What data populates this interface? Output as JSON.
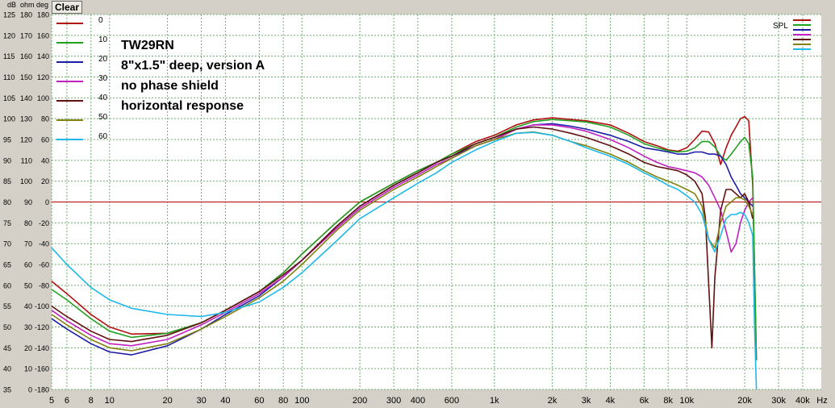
{
  "toolbar": {
    "clear_label": "Clear"
  },
  "axis_titles": {
    "db": "dB",
    "ohm": "ohm",
    "deg": "deg"
  },
  "colors": {
    "plot_bg": "#ffffff",
    "grid": "#6fae6f",
    "ref_line": "#b00000",
    "frame": "#d4d0c8"
  },
  "chart_data": {
    "type": "line",
    "title": "",
    "annotations": [
      "TW29RN",
      "8\"x1.5\" deep, version A",
      "no phase shield",
      "horizontal response"
    ],
    "x_scale": "log",
    "xlim": [
      5,
      50000
    ],
    "x_ticks": [
      {
        "v": 5,
        "l": "5"
      },
      {
        "v": 6,
        "l": "6"
      },
      {
        "v": 8,
        "l": "8"
      },
      {
        "v": 10,
        "l": "10"
      },
      {
        "v": 20,
        "l": "20"
      },
      {
        "v": 30,
        "l": "30"
      },
      {
        "v": 40,
        "l": "40"
      },
      {
        "v": 60,
        "l": "60"
      },
      {
        "v": 80,
        "l": "80"
      },
      {
        "v": 100,
        "l": "100"
      },
      {
        "v": 200,
        "l": "200"
      },
      {
        "v": 300,
        "l": "300"
      },
      {
        "v": 400,
        "l": "400"
      },
      {
        "v": 600,
        "l": "600"
      },
      {
        "v": 1000,
        "l": "1k"
      },
      {
        "v": 2000,
        "l": "2k"
      },
      {
        "v": 3000,
        "l": "3k"
      },
      {
        "v": 4000,
        "l": "4k"
      },
      {
        "v": 6000,
        "l": "6k"
      },
      {
        "v": 8000,
        "l": "8k"
      },
      {
        "v": 10000,
        "l": "10k"
      },
      {
        "v": 20000,
        "l": "20k"
      },
      {
        "v": 30000,
        "l": "30k"
      },
      {
        "v": 40000,
        "l": "40k"
      }
    ],
    "x_unit": "Hz",
    "ylim": [
      35,
      125
    ],
    "y_ticks": [
      {
        "db": "125",
        "ohm": "180",
        "deg": "180"
      },
      {
        "db": "120",
        "ohm": "170",
        "deg": "160"
      },
      {
        "db": "115",
        "ohm": "160",
        "deg": "140"
      },
      {
        "db": "110",
        "ohm": "150",
        "deg": "120"
      },
      {
        "db": "105",
        "ohm": "140",
        "deg": "100"
      },
      {
        "db": "100",
        "ohm": "130",
        "deg": "80"
      },
      {
        "db": "95",
        "ohm": "120",
        "deg": "60"
      },
      {
        "db": "90",
        "ohm": "110",
        "deg": "40"
      },
      {
        "db": "85",
        "ohm": "100",
        "deg": "20"
      },
      {
        "db": "80",
        "ohm": "90",
        "deg": "0"
      },
      {
        "db": "75",
        "ohm": "80",
        "deg": "-20"
      },
      {
        "db": "70",
        "ohm": "70",
        "deg": "-40"
      },
      {
        "db": "65",
        "ohm": "60",
        "deg": "-60"
      },
      {
        "db": "60",
        "ohm": "50",
        "deg": "-80"
      },
      {
        "db": "55",
        "ohm": "40",
        "deg": "-100"
      },
      {
        "db": "50",
        "ohm": "30",
        "deg": "-120"
      },
      {
        "db": "45",
        "ohm": "20",
        "deg": "-140"
      },
      {
        "db": "40",
        "ohm": "10",
        "deg": "-160"
      },
      {
        "db": "35",
        "ohm": "0",
        "deg": "-180"
      }
    ],
    "reference_line_db": 80,
    "grid": true,
    "legend_position": "top-left",
    "legend_right_label": "SPL",
    "series": [
      {
        "name": "0",
        "color": "#b01010",
        "x": [
          5,
          6,
          8,
          10,
          13,
          20,
          30,
          40,
          60,
          80,
          100,
          150,
          200,
          300,
          400,
          500,
          600,
          800,
          1000,
          1300,
          1600,
          2000,
          2500,
          3000,
          4000,
          5000,
          6000,
          7000,
          8000,
          9000,
          10000,
          11000,
          12000,
          13000,
          14000,
          15000,
          16000,
          17000,
          18000,
          19000,
          20000,
          21000,
          22000,
          23000
        ],
        "y": [
          61,
          58,
          53,
          50,
          48.3,
          48.5,
          51,
          54,
          58.5,
          63,
          67.5,
          75,
          80,
          84.5,
          87.5,
          89.5,
          91.5,
          94.5,
          96,
          98.5,
          99.7,
          100.2,
          99.8,
          99.5,
          98.5,
          96.5,
          94.5,
          93.5,
          92.5,
          92.2,
          93,
          95,
          97,
          96.8,
          94,
          89,
          93,
          96,
          98,
          100,
          100.5,
          99.5,
          84,
          42
        ]
      },
      {
        "name": "10",
        "color": "#22a022",
        "x": [
          5,
          6,
          8,
          10,
          13,
          20,
          30,
          40,
          60,
          80,
          100,
          150,
          200,
          300,
          400,
          500,
          600,
          800,
          1000,
          1300,
          1600,
          2000,
          2500,
          3000,
          4000,
          5000,
          6000,
          7000,
          8000,
          9000,
          10000,
          11000,
          12000,
          13000,
          14000,
          15000,
          16000,
          17000,
          18000,
          19000,
          20000,
          21000,
          22000,
          23000
        ],
        "y": [
          59,
          56.5,
          52,
          49,
          47.5,
          48.5,
          51,
          54,
          58.5,
          63,
          67.5,
          75,
          80,
          84.5,
          87.5,
          89.5,
          91.5,
          94,
          95.5,
          98,
          99.3,
          99.8,
          99.5,
          99.2,
          98,
          96,
          94,
          93,
          92.3,
          92,
          92.2,
          93,
          94.5,
          94.5,
          93.2,
          91,
          90,
          91.5,
          93,
          94.5,
          95.5,
          94,
          86,
          42
        ]
      },
      {
        "name": "20",
        "color": "#1c1ca8",
        "x": [
          5,
          6,
          8,
          10,
          13,
          20,
          30,
          40,
          60,
          80,
          100,
          150,
          200,
          300,
          400,
          500,
          600,
          800,
          1000,
          1300,
          1600,
          2000,
          2500,
          3000,
          4000,
          5000,
          6000,
          7000,
          8000,
          9000,
          10000,
          11000,
          12000,
          13000,
          14000,
          15000,
          16000,
          17000,
          18000,
          19000,
          20000,
          21000,
          22000
        ],
        "y": [
          52,
          49.5,
          46,
          44,
          43.3,
          45.5,
          49.5,
          53,
          57.5,
          62,
          66,
          74,
          79,
          84,
          87,
          89.5,
          91,
          93.5,
          95,
          97.5,
          98.5,
          98.8,
          98.2,
          97.5,
          96,
          94.5,
          93,
          92.5,
          92,
          91.5,
          91.5,
          92,
          92,
          91.5,
          91.5,
          91,
          89,
          86,
          84,
          82,
          81,
          80,
          79
        ]
      },
      {
        "name": "30",
        "color": "#c020c0",
        "x": [
          5,
          6,
          8,
          10,
          13,
          20,
          30,
          40,
          60,
          80,
          100,
          150,
          200,
          300,
          400,
          500,
          600,
          800,
          1000,
          1300,
          1600,
          2000,
          2500,
          3000,
          4000,
          5000,
          6000,
          7000,
          8000,
          9000,
          10000,
          11000,
          12000,
          13000,
          14000,
          15000,
          16000,
          17000,
          18000,
          19000,
          20000,
          21000,
          22000
        ],
        "y": [
          54,
          51.5,
          48,
          46,
          45.5,
          47,
          50.5,
          53.5,
          58,
          62,
          66,
          73.5,
          78.5,
          83.5,
          86.5,
          89,
          90.5,
          93.5,
          95,
          97.5,
          98.5,
          98.5,
          97.8,
          97,
          95,
          93,
          91,
          89.5,
          88.5,
          88,
          87.5,
          87,
          86,
          84,
          81,
          78,
          73,
          68,
          70,
          75,
          78,
          80,
          81
        ]
      },
      {
        "name": "40",
        "color": "#601010",
        "x": [
          5,
          6,
          8,
          10,
          13,
          20,
          30,
          40,
          60,
          80,
          100,
          150,
          200,
          300,
          400,
          500,
          600,
          800,
          1000,
          1300,
          1600,
          2000,
          2500,
          3000,
          4000,
          5000,
          6000,
          7000,
          8000,
          9000,
          10000,
          11000,
          12000,
          12500,
          13000,
          13500,
          14000,
          15000,
          16000,
          17000,
          18000,
          19000,
          20000,
          21000,
          22000
        ],
        "y": [
          55,
          52.5,
          49,
          47,
          46.5,
          48,
          51,
          54,
          58.5,
          62.5,
          66,
          74,
          79,
          84,
          87,
          89.5,
          91,
          94,
          95.5,
          97.5,
          98,
          97.5,
          96.5,
          95.5,
          93.5,
          91.5,
          89.5,
          88.5,
          88,
          87.5,
          86.5,
          85,
          82,
          76,
          60,
          45,
          62,
          78,
          83,
          83,
          82,
          81,
          82,
          80,
          76
        ]
      },
      {
        "name": "50",
        "color": "#808010",
        "x": [
          5,
          6,
          8,
          10,
          13,
          20,
          30,
          40,
          60,
          80,
          100,
          150,
          200,
          300,
          400,
          500,
          600,
          800,
          1000,
          1300,
          1600,
          2000,
          2500,
          3000,
          4000,
          5000,
          6000,
          7000,
          8000,
          9000,
          10000,
          11000,
          12000,
          13000,
          14000,
          15000,
          16000,
          17000,
          18000,
          19000,
          20000,
          21000,
          22000
        ],
        "y": [
          53,
          50.5,
          47,
          45,
          44.3,
          46,
          49.5,
          52.5,
          57,
          61,
          65,
          73,
          78,
          83,
          86,
          88.5,
          90.5,
          93.5,
          95,
          96.5,
          96.8,
          96,
          94.5,
          93.5,
          91.5,
          89.5,
          87.5,
          86,
          85,
          84,
          83,
          82,
          79,
          71,
          69,
          75,
          79,
          80,
          81,
          81,
          80.5,
          79,
          77
        ]
      },
      {
        "name": "60",
        "color": "#20b8e8",
        "x": [
          5,
          6,
          8,
          10,
          13,
          20,
          30,
          40,
          60,
          80,
          100,
          150,
          200,
          300,
          400,
          500,
          600,
          800,
          1000,
          1300,
          1600,
          2000,
          2500,
          3000,
          4000,
          5000,
          6000,
          7000,
          8000,
          9000,
          10000,
          11000,
          12000,
          13000,
          14000,
          15000,
          16000,
          17000,
          18000,
          19000,
          20000,
          21000,
          22000,
          22500,
          23000
        ],
        "y": [
          69,
          65,
          59.5,
          56.5,
          54.5,
          53,
          52.5,
          53.5,
          56,
          59.5,
          63,
          70.5,
          76,
          81,
          84.5,
          87,
          89.5,
          92.5,
          94.5,
          96.5,
          96.7,
          96,
          94.5,
          93,
          91,
          89,
          87,
          85.5,
          84,
          83,
          81.5,
          80,
          77,
          71,
          68,
          72,
          76,
          77,
          77,
          77.5,
          77,
          75,
          72,
          50,
          35
        ]
      }
    ]
  }
}
